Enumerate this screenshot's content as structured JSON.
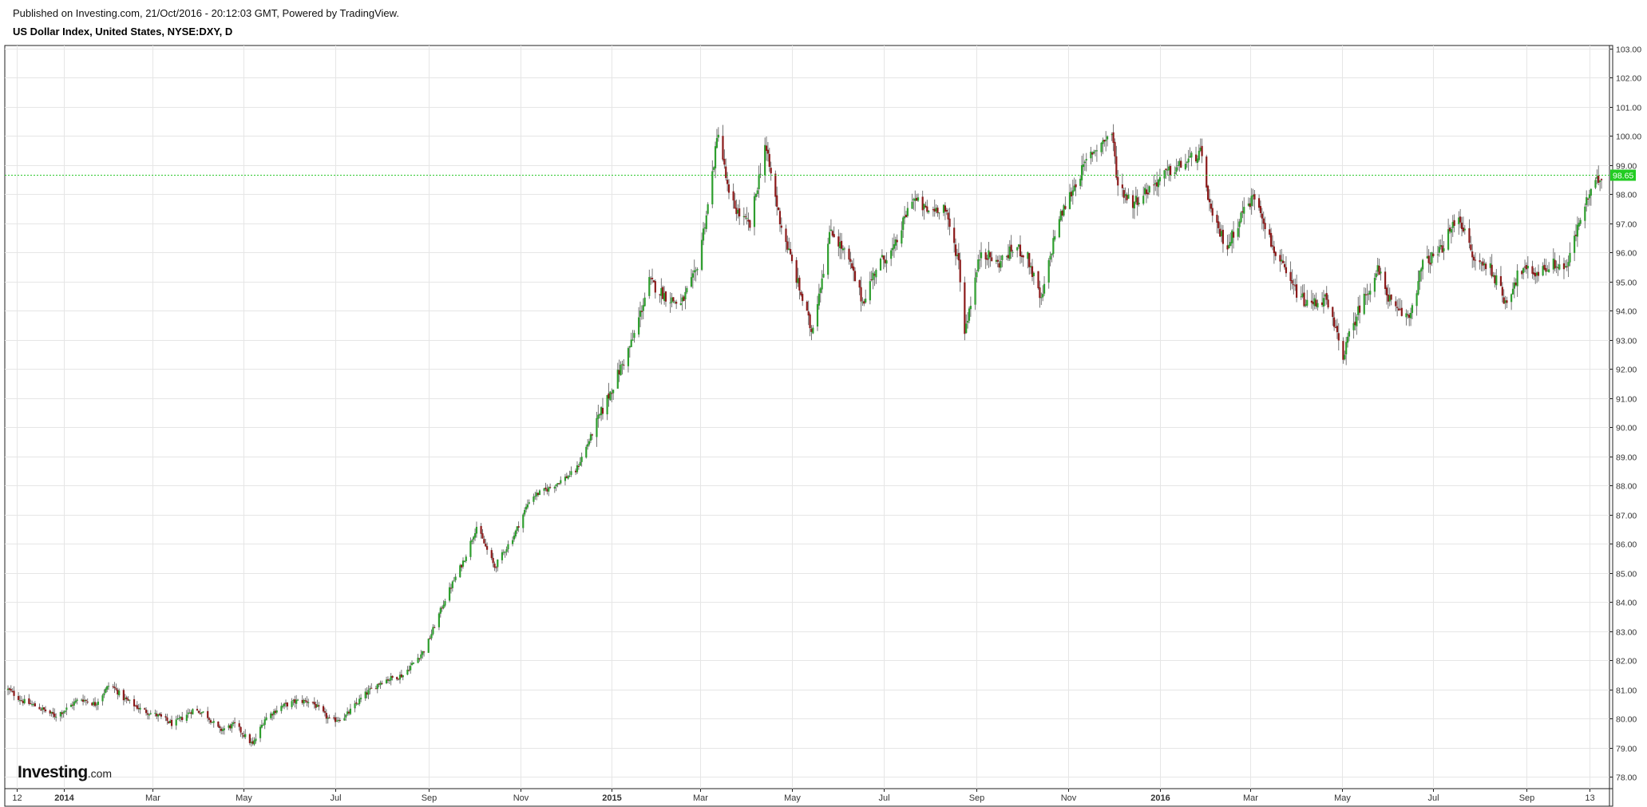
{
  "header": {
    "published": "Published on Investing.com, 21/Oct/2016 - 20:12:03 GMT, Powered by TradingView.",
    "symbol": "US Dollar Index, United States, NYSE:DXY, D"
  },
  "logo": {
    "main": "Investing",
    "sub": ".com"
  },
  "colors": {
    "up": "#2e9e2e",
    "down": "#8b1a1a",
    "wick": "#666666",
    "price_line": "#2ec82e",
    "grid": "#e6e6e6"
  },
  "chart_data": {
    "type": "candlestick",
    "title": "US Dollar Index, United States, NYSE:DXY, D",
    "ylim": [
      77.6,
      103.1
    ],
    "y_ticks": [
      "78.00",
      "79.00",
      "80.00",
      "81.00",
      "82.00",
      "83.00",
      "84.00",
      "85.00",
      "86.00",
      "87.00",
      "88.00",
      "89.00",
      "90.00",
      "91.00",
      "92.00",
      "93.00",
      "94.00",
      "95.00",
      "96.00",
      "97.00",
      "98.00",
      "99.00",
      "100.00",
      "101.00",
      "102.00",
      "103.00"
    ],
    "x_ticks": [
      {
        "date": "2013-12-01",
        "label": "12"
      },
      {
        "date": "2014-01-01",
        "label": "2014",
        "bold": true
      },
      {
        "date": "2014-03-01",
        "label": "Mar"
      },
      {
        "date": "2014-05-01",
        "label": "May"
      },
      {
        "date": "2014-07-01",
        "label": "Jul"
      },
      {
        "date": "2014-09-01",
        "label": "Sep"
      },
      {
        "date": "2014-11-01",
        "label": "Nov"
      },
      {
        "date": "2015-01-01",
        "label": "2015",
        "bold": true
      },
      {
        "date": "2015-03-01",
        "label": "Mar"
      },
      {
        "date": "2015-05-01",
        "label": "May"
      },
      {
        "date": "2015-07-01",
        "label": "Jul"
      },
      {
        "date": "2015-09-01",
        "label": "Sep"
      },
      {
        "date": "2015-11-01",
        "label": "Nov"
      },
      {
        "date": "2016-01-01",
        "label": "2016",
        "bold": true
      },
      {
        "date": "2016-03-01",
        "label": "Mar"
      },
      {
        "date": "2016-05-01",
        "label": "May"
      },
      {
        "date": "2016-07-01",
        "label": "Jul"
      },
      {
        "date": "2016-09-01",
        "label": "Sep"
      },
      {
        "date": "2016-10-13",
        "label": "13"
      }
    ],
    "x_range": [
      "2013-11-25",
      "2016-10-21"
    ],
    "last_price": 98.65,
    "last_price_label": "98.65",
    "series": [
      {
        "date": "2013-11-25",
        "value": 81.0
      },
      {
        "date": "2013-12-05",
        "value": 80.6
      },
      {
        "date": "2013-12-15",
        "value": 80.4
      },
      {
        "date": "2013-12-26",
        "value": 80.1
      },
      {
        "date": "2014-01-02",
        "value": 80.3
      },
      {
        "date": "2014-01-12",
        "value": 80.7
      },
      {
        "date": "2014-01-22",
        "value": 80.5
      },
      {
        "date": "2014-02-01",
        "value": 81.2
      },
      {
        "date": "2014-02-10",
        "value": 80.7
      },
      {
        "date": "2014-02-22",
        "value": 80.3
      },
      {
        "date": "2014-03-05",
        "value": 80.1
      },
      {
        "date": "2014-03-15",
        "value": 79.8
      },
      {
        "date": "2014-03-28",
        "value": 80.3
      },
      {
        "date": "2014-04-05",
        "value": 80.2
      },
      {
        "date": "2014-04-15",
        "value": 79.6
      },
      {
        "date": "2014-04-25",
        "value": 79.8
      },
      {
        "date": "2014-05-07",
        "value": 79.1
      },
      {
        "date": "2014-05-15",
        "value": 80.0
      },
      {
        "date": "2014-05-25",
        "value": 80.4
      },
      {
        "date": "2014-06-05",
        "value": 80.6
      },
      {
        "date": "2014-06-15",
        "value": 80.6
      },
      {
        "date": "2014-06-28",
        "value": 79.9
      },
      {
        "date": "2014-07-08",
        "value": 80.1
      },
      {
        "date": "2014-07-20",
        "value": 80.8
      },
      {
        "date": "2014-08-01",
        "value": 81.3
      },
      {
        "date": "2014-08-15",
        "value": 81.5
      },
      {
        "date": "2014-08-30",
        "value": 82.4
      },
      {
        "date": "2014-09-12",
        "value": 84.1
      },
      {
        "date": "2014-09-25",
        "value": 85.5
      },
      {
        "date": "2014-10-03",
        "value": 86.6
      },
      {
        "date": "2014-10-15",
        "value": 85.2
      },
      {
        "date": "2014-10-28",
        "value": 86.3
      },
      {
        "date": "2014-11-08",
        "value": 87.6
      },
      {
        "date": "2014-11-20",
        "value": 87.9
      },
      {
        "date": "2014-12-08",
        "value": 88.5
      },
      {
        "date": "2014-12-20",
        "value": 89.9
      },
      {
        "date": "2015-01-05",
        "value": 91.8
      },
      {
        "date": "2015-01-15",
        "value": 93.0
      },
      {
        "date": "2015-01-26",
        "value": 95.0
      },
      {
        "date": "2015-02-06",
        "value": 94.5
      },
      {
        "date": "2015-02-16",
        "value": 94.2
      },
      {
        "date": "2015-02-26",
        "value": 95.3
      },
      {
        "date": "2015-03-06",
        "value": 97.6
      },
      {
        "date": "2015-03-13",
        "value": 100.2
      },
      {
        "date": "2015-03-20",
        "value": 97.9
      },
      {
        "date": "2015-03-27",
        "value": 97.3
      },
      {
        "date": "2015-04-03",
        "value": 96.9
      },
      {
        "date": "2015-04-13",
        "value": 99.7
      },
      {
        "date": "2015-04-23",
        "value": 97.1
      },
      {
        "date": "2015-05-04",
        "value": 95.1
      },
      {
        "date": "2015-05-14",
        "value": 93.3
      },
      {
        "date": "2015-05-27",
        "value": 96.8
      },
      {
        "date": "2015-06-08",
        "value": 95.7
      },
      {
        "date": "2015-06-17",
        "value": 94.3
      },
      {
        "date": "2015-06-27",
        "value": 95.6
      },
      {
        "date": "2015-07-08",
        "value": 96.1
      },
      {
        "date": "2015-07-20",
        "value": 97.9
      },
      {
        "date": "2015-07-30",
        "value": 97.4
      },
      {
        "date": "2015-08-10",
        "value": 97.6
      },
      {
        "date": "2015-08-20",
        "value": 95.7
      },
      {
        "date": "2015-08-24",
        "value": 93.3
      },
      {
        "date": "2015-09-04",
        "value": 96.1
      },
      {
        "date": "2015-09-15",
        "value": 95.6
      },
      {
        "date": "2015-09-27",
        "value": 96.2
      },
      {
        "date": "2015-10-05",
        "value": 95.8
      },
      {
        "date": "2015-10-14",
        "value": 94.3
      },
      {
        "date": "2015-10-24",
        "value": 96.9
      },
      {
        "date": "2015-11-05",
        "value": 98.3
      },
      {
        "date": "2015-11-16",
        "value": 99.4
      },
      {
        "date": "2015-11-30",
        "value": 100.1
      },
      {
        "date": "2015-12-04",
        "value": 98.3
      },
      {
        "date": "2015-12-14",
        "value": 97.7
      },
      {
        "date": "2015-12-25",
        "value": 98.2
      },
      {
        "date": "2016-01-05",
        "value": 98.7
      },
      {
        "date": "2016-01-15",
        "value": 99.0
      },
      {
        "date": "2016-01-28",
        "value": 99.4
      },
      {
        "date": "2016-02-05",
        "value": 97.1
      },
      {
        "date": "2016-02-15",
        "value": 96.2
      },
      {
        "date": "2016-02-25",
        "value": 97.4
      },
      {
        "date": "2016-03-05",
        "value": 98.0
      },
      {
        "date": "2016-03-15",
        "value": 96.3
      },
      {
        "date": "2016-03-28",
        "value": 94.9
      },
      {
        "date": "2016-04-08",
        "value": 94.2
      },
      {
        "date": "2016-04-20",
        "value": 94.4
      },
      {
        "date": "2016-05-02",
        "value": 92.5
      },
      {
        "date": "2016-05-12",
        "value": 94.0
      },
      {
        "date": "2016-05-25",
        "value": 95.4
      },
      {
        "date": "2016-06-05",
        "value": 94.0
      },
      {
        "date": "2016-06-15",
        "value": 93.8
      },
      {
        "date": "2016-06-24",
        "value": 95.6
      },
      {
        "date": "2016-07-05",
        "value": 96.0
      },
      {
        "date": "2016-07-18",
        "value": 97.3
      },
      {
        "date": "2016-07-28",
        "value": 95.7
      },
      {
        "date": "2016-08-08",
        "value": 95.5
      },
      {
        "date": "2016-08-18",
        "value": 94.3
      },
      {
        "date": "2016-08-28",
        "value": 95.4
      },
      {
        "date": "2016-09-08",
        "value": 95.3
      },
      {
        "date": "2016-09-18",
        "value": 95.6
      },
      {
        "date": "2016-09-28",
        "value": 95.5
      },
      {
        "date": "2016-10-07",
        "value": 97.2
      },
      {
        "date": "2016-10-14",
        "value": 98.1
      },
      {
        "date": "2016-10-21",
        "value": 98.65
      }
    ]
  }
}
